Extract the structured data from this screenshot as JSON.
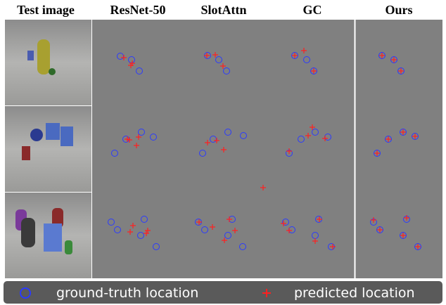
{
  "headers": [
    "Test image",
    "ResNet-50",
    "SlotAttn",
    "GC",
    "Ours"
  ],
  "legend": {
    "ground_truth": "ground-truth location",
    "predicted": "predicted location"
  }
}
